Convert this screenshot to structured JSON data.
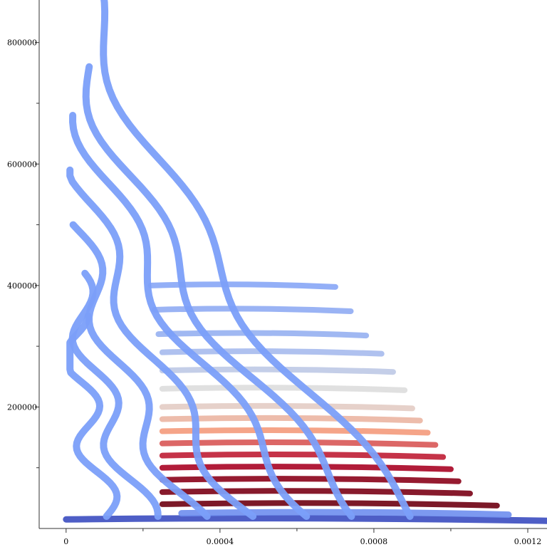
{
  "chart_data": {
    "type": "scatter",
    "title": "",
    "xlabel": "",
    "ylabel": "",
    "xlim": [
      -7e-05,
      0.00125
    ],
    "ylim": [
      0,
      870000
    ],
    "x_ticks": [
      {
        "value": 0,
        "label": "0"
      },
      {
        "value": 0.0004,
        "label": "0.0004"
      },
      {
        "value": 0.0008,
        "label": "0.0008"
      },
      {
        "value": 0.0012,
        "label": "0.0012"
      }
    ],
    "x_minor_ticks": [
      0.0002,
      0.0006,
      0.001
    ],
    "y_ticks": [
      {
        "value": 200000,
        "label": "200000"
      },
      {
        "value": 400000,
        "label": "400000"
      },
      {
        "value": 600000,
        "label": "600000"
      },
      {
        "value": 800000,
        "label": "800000"
      }
    ],
    "y_minor_ticks": [
      100000,
      300000,
      500000,
      700000
    ],
    "grid": false,
    "legend": "none",
    "colormap": "coolwarm",
    "colors": {
      "cool_low": "#3b4cc0",
      "cool_mid": "#7b9ff9",
      "neutral": "#dddddd",
      "warm_mid": "#f49a7b",
      "warm_high": "#b40426",
      "warm_max": "#6e0011"
    },
    "series_sweeps": [
      {
        "name": "",
        "peak_x": 3e-05,
        "top_y": 350000
      },
      {
        "name": "",
        "peak_x": 7e-05,
        "top_y": 420000
      },
      {
        "name": "",
        "peak_x": 0.00012,
        "top_y": 500000
      },
      {
        "name": "",
        "peak_x": 0.00018,
        "top_y": 590000
      },
      {
        "name": "",
        "peak_x": 0.00025,
        "top_y": 680000
      },
      {
        "name": "",
        "peak_x": 0.0003,
        "top_y": 760000
      },
      {
        "name": "",
        "peak_x": 0.00035,
        "top_y": 880000
      }
    ],
    "horizontal_bands": [
      {
        "y": 15000,
        "x_start": 0.0,
        "x_end": 0.00125,
        "color_value": 0.0
      },
      {
        "y": 25000,
        "x_start": 0.0003,
        "x_end": 0.00115,
        "color_value": 0.2
      },
      {
        "y": 40000,
        "x_start": 0.00025,
        "x_end": 0.00112,
        "color_value": 1.0
      },
      {
        "y": 60000,
        "x_start": 0.00025,
        "x_end": 0.00105,
        "color_value": 0.98
      },
      {
        "y": 80000,
        "x_start": 0.00025,
        "x_end": 0.00102,
        "color_value": 0.95
      },
      {
        "y": 100000,
        "x_start": 0.00025,
        "x_end": 0.001,
        "color_value": 0.9
      },
      {
        "y": 120000,
        "x_start": 0.00025,
        "x_end": 0.00098,
        "color_value": 0.85
      },
      {
        "y": 140000,
        "x_start": 0.00025,
        "x_end": 0.00096,
        "color_value": 0.78
      },
      {
        "y": 160000,
        "x_start": 0.00025,
        "x_end": 0.00094,
        "color_value": 0.7
      },
      {
        "y": 180000,
        "x_start": 0.00025,
        "x_end": 0.00092,
        "color_value": 0.62
      },
      {
        "y": 200000,
        "x_start": 0.00025,
        "x_end": 0.0009,
        "color_value": 0.55
      },
      {
        "y": 230000,
        "x_start": 0.00025,
        "x_end": 0.00088,
        "color_value": 0.5
      },
      {
        "y": 260000,
        "x_start": 0.00025,
        "x_end": 0.00085,
        "color_value": 0.42
      },
      {
        "y": 290000,
        "x_start": 0.00025,
        "x_end": 0.00082,
        "color_value": 0.36
      },
      {
        "y": 320000,
        "x_start": 0.00024,
        "x_end": 0.00078,
        "color_value": 0.32
      },
      {
        "y": 360000,
        "x_start": 0.00023,
        "x_end": 0.00074,
        "color_value": 0.3
      },
      {
        "y": 400000,
        "x_start": 0.00022,
        "x_end": 0.0007,
        "color_value": 0.28
      }
    ]
  }
}
